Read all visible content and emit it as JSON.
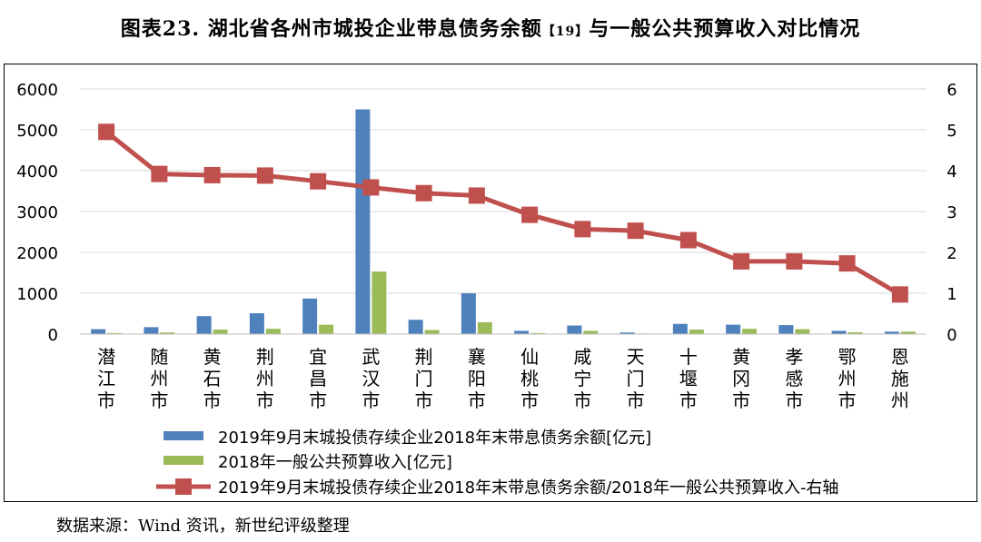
{
  "title": {
    "main": "图表23. 湖北省各州市城投企业带息债务余额",
    "note": "【19】",
    "tail": "与一般公共预算收入对比情况"
  },
  "source": "数据来源：Wind 资讯，新世纪评级整理",
  "chart_data": {
    "type": "bar",
    "categories": [
      "潜江市",
      "随州市",
      "黄石市",
      "荆州市",
      "宜昌市",
      "武汉市",
      "荆门市",
      "襄阳市",
      "仙桃市",
      "咸宁市",
      "天门市",
      "十堰市",
      "黄冈市",
      "孝感市",
      "鄂州市",
      "恩施州"
    ],
    "series": [
      {
        "name": "2019年9月末城投债存续企业2018年末带息债务余额[亿元]",
        "type": "bar",
        "axis": "left",
        "color": "#4f81bd",
        "values": [
          120,
          170,
          440,
          510,
          870,
          5500,
          350,
          1000,
          80,
          210,
          40,
          250,
          230,
          220,
          80,
          60
        ]
      },
      {
        "name": "2018年一般公共预算收入[亿元]",
        "type": "bar",
        "axis": "left",
        "color": "#9bbb59",
        "values": [
          25,
          40,
          110,
          130,
          230,
          1530,
          100,
          290,
          25,
          80,
          15,
          110,
          130,
          120,
          45,
          60
        ]
      },
      {
        "name": "2019年9月末城投债存续企业2018年末带息债务余额/2018年一般公共预算收入-右轴",
        "type": "line",
        "axis": "right",
        "color": "#c0504d",
        "values": [
          4.95,
          3.92,
          3.89,
          3.88,
          3.74,
          3.59,
          3.45,
          3.39,
          2.92,
          2.57,
          2.53,
          2.3,
          1.78,
          1.78,
          1.73,
          0.97
        ]
      }
    ],
    "y_left": {
      "min": 0,
      "max": 6000,
      "ticks": [
        0,
        1000,
        2000,
        3000,
        4000,
        5000,
        6000
      ]
    },
    "y_right": {
      "min": 0,
      "max": 6,
      "ticks": [
        0,
        1,
        2,
        3,
        4,
        5,
        6
      ]
    },
    "grid": true,
    "legend_position": "bottom"
  }
}
